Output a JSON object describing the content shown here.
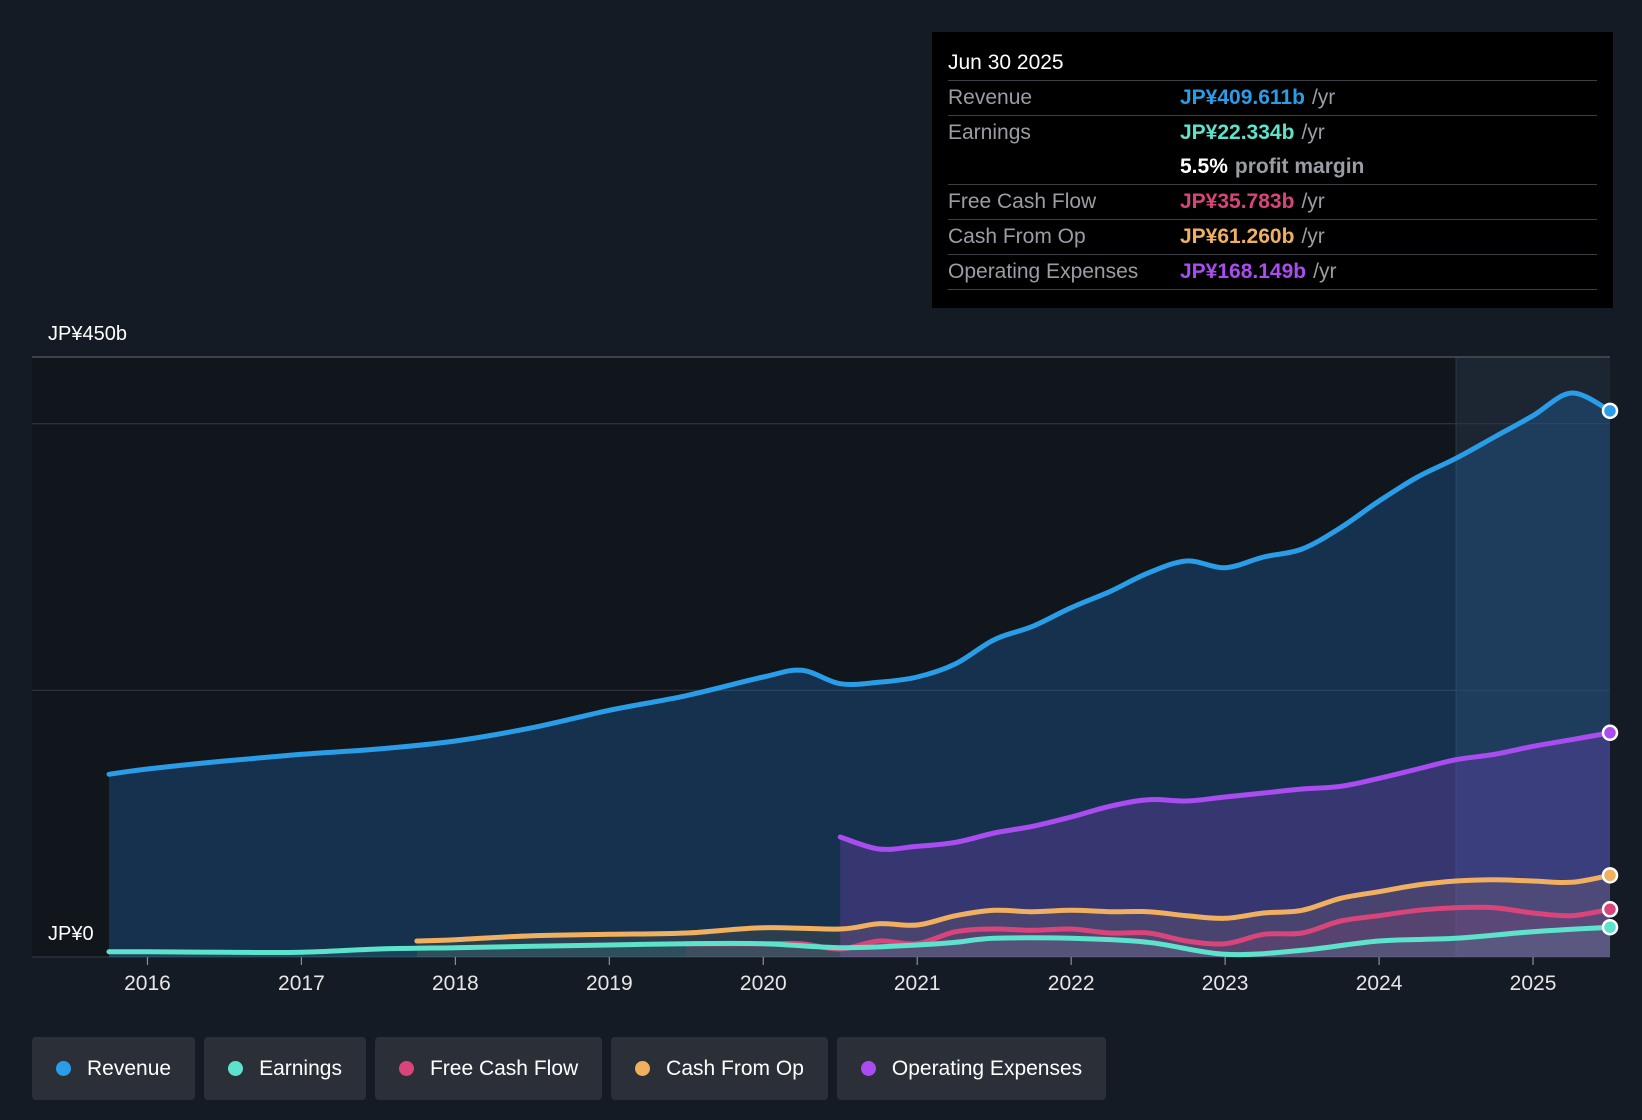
{
  "chart_data": {
    "type": "area",
    "title": "",
    "y_axis": {
      "top_label": "JP¥450b",
      "bottom_label": "JP¥0",
      "ylim": [
        0,
        450
      ]
    },
    "x_ticks": [
      "2016",
      "2017",
      "2018",
      "2019",
      "2020",
      "2021",
      "2022",
      "2023",
      "2024",
      "2025"
    ],
    "xlim": [
      2015.25,
      2025.5
    ],
    "forecast_shade_start": 2024.5,
    "series": [
      {
        "name": "Revenue",
        "color": "#2a9de8",
        "fill": "rgba(35,110,180,0.32)",
        "x": [
          2015.75,
          2016.0,
          2016.5,
          2017.0,
          2017.5,
          2018.0,
          2018.5,
          2019.0,
          2019.5,
          2020.0,
          2020.25,
          2020.5,
          2020.75,
          2021.0,
          2021.25,
          2021.5,
          2021.75,
          2022.0,
          2022.25,
          2022.5,
          2022.75,
          2023.0,
          2023.25,
          2023.5,
          2023.75,
          2024.0,
          2024.25,
          2024.5,
          2024.75,
          2025.0,
          2025.25,
          2025.5
        ],
        "values": [
          137,
          141,
          147,
          152,
          156,
          162,
          172,
          185,
          196,
          210,
          215,
          205,
          206,
          210,
          220,
          238,
          248,
          262,
          274,
          288,
          297,
          292,
          300,
          306,
          322,
          342,
          360,
          374,
          390,
          406,
          423,
          409.611
        ]
      },
      {
        "name": "Earnings",
        "color": "#5de3cc",
        "fill": "rgba(93,227,204,0.10)",
        "x": [
          2015.75,
          2016.0,
          2016.5,
          2017.0,
          2017.5,
          2018.0,
          2018.5,
          2019.0,
          2019.5,
          2020.0,
          2020.5,
          2021.0,
          2021.25,
          2021.5,
          2022.0,
          2022.5,
          2023.0,
          2023.5,
          2024.0,
          2024.5,
          2025.0,
          2025.5
        ],
        "values": [
          4,
          4,
          3.5,
          3.5,
          6,
          7,
          8,
          9,
          10,
          10,
          7,
          9,
          11,
          14,
          14,
          11,
          2,
          5,
          12,
          14,
          19,
          22.334
        ]
      },
      {
        "name": "Free Cash Flow",
        "color": "#d9457a",
        "fill": "rgba(217,69,122,0.10)",
        "x": [
          2019.5,
          2020.0,
          2020.25,
          2020.5,
          2020.75,
          2021.0,
          2021.25,
          2021.5,
          2021.75,
          2022.0,
          2022.25,
          2022.5,
          2022.75,
          2023.0,
          2023.25,
          2023.5,
          2023.75,
          2024.0,
          2024.25,
          2024.5,
          2024.75,
          2025.0,
          2025.25,
          2025.5
        ],
        "values": [
          10,
          10,
          10,
          6,
          12,
          10,
          19,
          21,
          20,
          21,
          18,
          18,
          12,
          10,
          17,
          18,
          27,
          31,
          35,
          37,
          37,
          33,
          31,
          35.783
        ]
      },
      {
        "name": "Cash From Op",
        "color": "#f0b060",
        "fill": "rgba(240,176,96,0.10)",
        "x": [
          2017.75,
          2018.0,
          2018.5,
          2019.0,
          2019.5,
          2020.0,
          2020.5,
          2020.75,
          2021.0,
          2021.25,
          2021.5,
          2021.75,
          2022.0,
          2022.25,
          2022.5,
          2022.75,
          2023.0,
          2023.25,
          2023.5,
          2023.75,
          2024.0,
          2024.25,
          2024.5,
          2024.75,
          2025.0,
          2025.25,
          2025.5
        ],
        "values": [
          12,
          13,
          16,
          17,
          18,
          22,
          21,
          25,
          24,
          31,
          35,
          34,
          35,
          34,
          34,
          31,
          29,
          33,
          35,
          44,
          49,
          54,
          57,
          58,
          57,
          56,
          61.26
        ]
      },
      {
        "name": "Operating Expenses",
        "color": "#a94cf0",
        "fill": "rgba(130,70,200,0.30)",
        "x": [
          2020.5,
          2020.75,
          2021.0,
          2021.25,
          2021.5,
          2021.75,
          2022.0,
          2022.25,
          2022.5,
          2022.75,
          2023.0,
          2023.25,
          2023.5,
          2023.75,
          2024.0,
          2024.25,
          2024.5,
          2024.75,
          2025.0,
          2025.25,
          2025.5
        ],
        "values": [
          90,
          81,
          83,
          86,
          93,
          98,
          105,
          113,
          118,
          117,
          120,
          123,
          126,
          128,
          134,
          141,
          148,
          152,
          158,
          163,
          168.149
        ]
      }
    ]
  },
  "tooltip": {
    "date": "Jun 30 2025",
    "rows": [
      {
        "label": "Revenue",
        "value": "JP¥409.611b",
        "unit": "/yr",
        "color": "#2a9de8"
      },
      {
        "label": "Earnings",
        "value": "JP¥22.334b",
        "unit": "/yr",
        "color": "#5de3cc"
      },
      {
        "label": "",
        "value": "5.5%",
        "unit": "profit margin",
        "color": "#ffffff"
      },
      {
        "label": "Free Cash Flow",
        "value": "JP¥35.783b",
        "unit": "/yr",
        "color": "#d9457a"
      },
      {
        "label": "Cash From Op",
        "value": "JP¥61.260b",
        "unit": "/yr",
        "color": "#f0b060"
      },
      {
        "label": "Operating Expenses",
        "value": "JP¥168.149b",
        "unit": "/yr",
        "color": "#a94cf0"
      }
    ]
  },
  "legend": [
    {
      "label": "Revenue",
      "color": "#2a9de8"
    },
    {
      "label": "Earnings",
      "color": "#5de3cc"
    },
    {
      "label": "Free Cash Flow",
      "color": "#d9457a"
    },
    {
      "label": "Cash From Op",
      "color": "#f0b060"
    },
    {
      "label": "Operating Expenses",
      "color": "#a94cf0"
    }
  ]
}
